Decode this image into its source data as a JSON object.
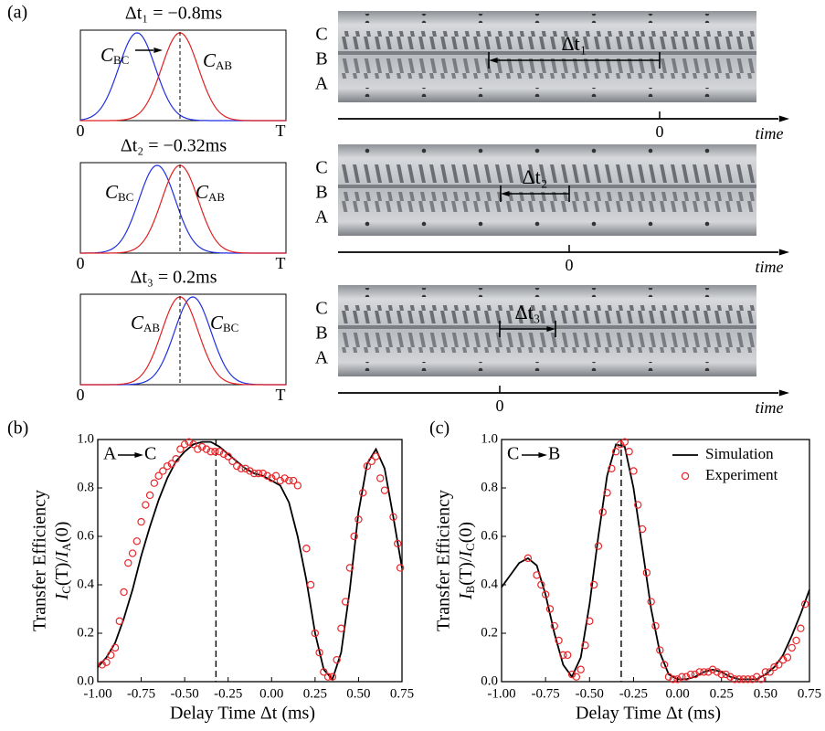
{
  "panel_a": {
    "label": "(a)",
    "rows": [
      {
        "title": "Δt₁ = −0.8ms",
        "curves": [
          {
            "main": "C",
            "sub": "BC"
          },
          {
            "main": "C",
            "sub": "AB"
          }
        ],
        "axis": [
          "0",
          "T"
        ],
        "rails": [
          "C",
          "B",
          "A"
        ],
        "delay_label": "Δt₁",
        "time_zero": "0",
        "time_label": "time"
      },
      {
        "title": "Δt₂ = −0.32ms",
        "curves": [
          {
            "main": "C",
            "sub": "BC"
          },
          {
            "main": "C",
            "sub": "AB"
          }
        ],
        "axis": [
          "0",
          "T"
        ],
        "rails": [
          "C",
          "B",
          "A"
        ],
        "delay_label": "Δt₂",
        "time_zero": "0",
        "time_label": "time"
      },
      {
        "title": "Δt₃ = 0.2ms",
        "curves": [
          {
            "main": "C",
            "sub": "AB"
          },
          {
            "main": "C",
            "sub": "BC"
          }
        ],
        "axis": [
          "0",
          "T"
        ],
        "rails": [
          "C",
          "B",
          "A"
        ],
        "delay_label": "Δt₃",
        "time_zero": "0",
        "time_label": "time"
      }
    ]
  },
  "chart_data": [
    {
      "type": "line",
      "panel_label": "(b)",
      "xlabel": "Delay Time Δt (ms)",
      "ylabel": "Transfer Efficiency",
      "ylabel2": [
        "I",
        "C",
        "(T)/",
        "I",
        "A",
        "(0)"
      ],
      "annotation": {
        "from": "A",
        "to": "C"
      },
      "vline": -0.32,
      "xlim": [
        -1.0,
        0.75
      ],
      "ylim": [
        0,
        1.0
      ],
      "xticks": [
        {
          "value": -1.0,
          "label": "-1.00"
        },
        {
          "value": -0.75,
          "label": "-0.75"
        },
        {
          "value": -0.5,
          "label": "-0.50"
        },
        {
          "value": -0.25,
          "label": "-0.25"
        },
        {
          "value": 0,
          "label": "0.00"
        },
        {
          "value": 0.25,
          "label": "0.25"
        },
        {
          "value": 0.5,
          "label": "0.50"
        },
        {
          "value": 0.75,
          "label": "0.75"
        }
      ],
      "yticks": [
        {
          "value": 0,
          "label": "0.0"
        },
        {
          "value": 0.2,
          "label": "0.2"
        },
        {
          "value": 0.4,
          "label": "0.4"
        },
        {
          "value": 0.6,
          "label": "0.6"
        },
        {
          "value": 0.8,
          "label": "0.8"
        },
        {
          "value": 1.0,
          "label": "1.0"
        }
      ],
      "series": [
        {
          "style": "line",
          "color": "#000000",
          "x": [
            -1.0,
            -0.95,
            -0.9,
            -0.85,
            -0.8,
            -0.75,
            -0.7,
            -0.65,
            -0.6,
            -0.55,
            -0.5,
            -0.45,
            -0.4,
            -0.35,
            -0.3,
            -0.25,
            -0.2,
            -0.15,
            -0.1,
            -0.05,
            0,
            0.05,
            0.1,
            0.15,
            0.2,
            0.25,
            0.3,
            0.35,
            0.4,
            0.45,
            0.5,
            0.55,
            0.6,
            0.65,
            0.7,
            0.75
          ],
          "values": [
            0.06,
            0.1,
            0.16,
            0.26,
            0.38,
            0.52,
            0.64,
            0.75,
            0.84,
            0.91,
            0.95,
            0.98,
            0.99,
            0.99,
            0.97,
            0.94,
            0.91,
            0.88,
            0.86,
            0.85,
            0.83,
            0.81,
            0.74,
            0.6,
            0.42,
            0.2,
            0.05,
            0.01,
            0.12,
            0.38,
            0.7,
            0.9,
            0.96,
            0.88,
            0.68,
            0.47
          ]
        },
        {
          "style": "markers",
          "color": "#e8262a",
          "x": [
            -0.975,
            -0.95,
            -0.925,
            -0.9,
            -0.875,
            -0.85,
            -0.825,
            -0.8,
            -0.775,
            -0.75,
            -0.725,
            -0.7,
            -0.675,
            -0.65,
            -0.625,
            -0.6,
            -0.575,
            -0.55,
            -0.525,
            -0.5,
            -0.475,
            -0.45,
            -0.425,
            -0.4,
            -0.375,
            -0.35,
            -0.325,
            -0.3,
            -0.275,
            -0.25,
            -0.225,
            -0.2,
            -0.175,
            -0.15,
            -0.125,
            -0.1,
            -0.075,
            -0.05,
            -0.025,
            0,
            0.025,
            0.05,
            0.075,
            0.1,
            0.125,
            0.15,
            0.2,
            0.225,
            0.25,
            0.275,
            0.3,
            0.325,
            0.35,
            0.375,
            0.4,
            0.425,
            0.45,
            0.475,
            0.5,
            0.525,
            0.55,
            0.575,
            0.6,
            0.625,
            0.65,
            0.7,
            0.725,
            0.74
          ],
          "values": [
            0.07,
            0.08,
            0.11,
            0.14,
            0.25,
            0.37,
            0.49,
            0.53,
            0.58,
            0.66,
            0.73,
            0.77,
            0.82,
            0.85,
            0.87,
            0.89,
            0.9,
            0.92,
            0.96,
            0.98,
            0.99,
            0.98,
            0.96,
            0.97,
            0.96,
            0.95,
            0.95,
            0.95,
            0.94,
            0.93,
            0.91,
            0.89,
            0.88,
            0.88,
            0.87,
            0.86,
            0.86,
            0.86,
            0.85,
            0.84,
            0.85,
            0.83,
            0.84,
            0.83,
            0.83,
            0.81,
            0.55,
            0.4,
            0.2,
            0.12,
            0.04,
            0.02,
            0.02,
            0.09,
            0.22,
            0.33,
            0.47,
            0.6,
            0.67,
            0.78,
            0.89,
            0.91,
            0.93,
            0.84,
            0.79,
            0.68,
            0.57,
            0.47
          ]
        }
      ]
    },
    {
      "type": "line",
      "panel_label": "(c)",
      "xlabel": "Delay Time Δt (ms)",
      "ylabel": "Transfer Efficiency",
      "ylabel2": [
        "I",
        "B",
        "(T)/",
        "I",
        "C",
        "(0)"
      ],
      "annotation": {
        "from": "C",
        "to": "B"
      },
      "vline": -0.32,
      "legend": "upper right",
      "xlim": [
        -1.0,
        0.75
      ],
      "ylim": [
        0,
        1.0
      ],
      "xticks": [
        {
          "value": -1.0,
          "label": "-1.00"
        },
        {
          "value": -0.75,
          "label": "-0.75"
        },
        {
          "value": -0.5,
          "label": "-0.50"
        },
        {
          "value": -0.25,
          "label": "-0.25"
        },
        {
          "value": 0,
          "label": "0.00"
        },
        {
          "value": 0.25,
          "label": "0.25"
        },
        {
          "value": 0.5,
          "label": "0.50"
        },
        {
          "value": 0.75,
          "label": "0.75"
        }
      ],
      "yticks": [
        {
          "value": 0,
          "label": "0.0"
        },
        {
          "value": 0.2,
          "label": "0.2"
        },
        {
          "value": 0.4,
          "label": "0.4"
        },
        {
          "value": 0.6,
          "label": "0.6"
        },
        {
          "value": 0.8,
          "label": "0.8"
        },
        {
          "value": 1.0,
          "label": "1.0"
        }
      ],
      "series": [
        {
          "name": "Simulation",
          "style": "line",
          "color": "#000000",
          "x": [
            -1.0,
            -0.95,
            -0.9,
            -0.85,
            -0.8,
            -0.75,
            -0.7,
            -0.65,
            -0.6,
            -0.55,
            -0.5,
            -0.45,
            -0.4,
            -0.35,
            -0.3,
            -0.25,
            -0.2,
            -0.15,
            -0.1,
            -0.05,
            0,
            0.05,
            0.1,
            0.15,
            0.2,
            0.25,
            0.3,
            0.35,
            0.4,
            0.45,
            0.5,
            0.55,
            0.6,
            0.65,
            0.7,
            0.75
          ],
          "values": [
            0.39,
            0.44,
            0.49,
            0.51,
            0.48,
            0.36,
            0.2,
            0.07,
            0.02,
            0.1,
            0.32,
            0.6,
            0.85,
            0.98,
            0.97,
            0.8,
            0.55,
            0.3,
            0.12,
            0.03,
            0.01,
            0.01,
            0.02,
            0.04,
            0.05,
            0.04,
            0.02,
            0.01,
            0.01,
            0.01,
            0.03,
            0.06,
            0.11,
            0.19,
            0.28,
            0.38
          ]
        },
        {
          "name": "Experiment",
          "style": "markers",
          "color": "#e8262a",
          "x": [
            -0.85,
            -0.8,
            -0.775,
            -0.75,
            -0.725,
            -0.7,
            -0.675,
            -0.65,
            -0.625,
            -0.6,
            -0.575,
            -0.55,
            -0.525,
            -0.5,
            -0.475,
            -0.45,
            -0.425,
            -0.4,
            -0.375,
            -0.35,
            -0.325,
            -0.3,
            -0.275,
            -0.25,
            -0.225,
            -0.2,
            -0.175,
            -0.15,
            -0.125,
            -0.1,
            -0.075,
            -0.05,
            -0.025,
            0,
            0.025,
            0.05,
            0.075,
            0.1,
            0.125,
            0.15,
            0.175,
            0.2,
            0.225,
            0.25,
            0.275,
            0.3,
            0.325,
            0.35,
            0.375,
            0.4,
            0.425,
            0.45,
            0.475,
            0.5,
            0.525,
            0.55,
            0.575,
            0.6,
            0.625,
            0.65,
            0.675,
            0.7,
            0.725
          ],
          "values": [
            0.51,
            0.44,
            0.4,
            0.36,
            0.3,
            0.23,
            0.17,
            0.11,
            0.11,
            0.03,
            0.02,
            0.05,
            0.15,
            0.25,
            0.4,
            0.56,
            0.7,
            0.78,
            0.88,
            0.95,
            0.98,
            0.99,
            0.95,
            0.87,
            0.73,
            0.63,
            0.45,
            0.33,
            0.23,
            0.13,
            0.07,
            0.02,
            0.01,
            0.01,
            0.02,
            0.02,
            0.03,
            0.03,
            0.04,
            0.04,
            0.04,
            0.05,
            0.04,
            0.03,
            0.03,
            0.02,
            0.01,
            0.01,
            0.01,
            0.01,
            0.01,
            0.02,
            0.01,
            0.04,
            0.04,
            0.06,
            0.07,
            0.09,
            0.1,
            0.14,
            0.17,
            0.22,
            0.32
          ]
        }
      ]
    }
  ]
}
